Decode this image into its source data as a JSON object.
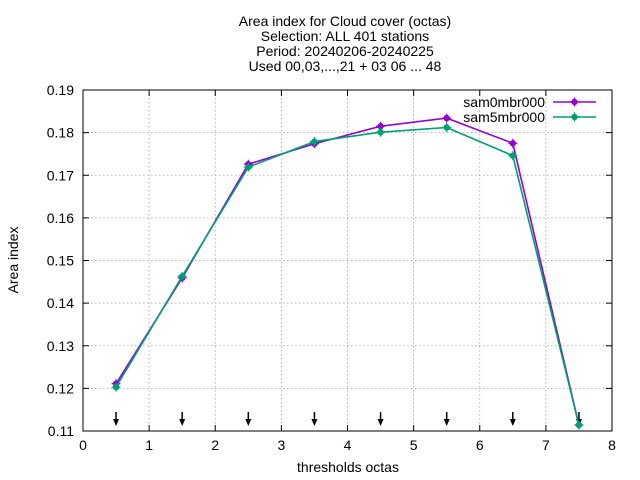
{
  "chart_data": {
    "type": "line",
    "title_lines": [
      "Area index  for Cloud cover (octas)",
      "Selection: ALL    401 stations",
      "Period: 20240206-20240225",
      "Used 00,03,...,21 + 03 06 ... 48"
    ],
    "xlabel": "thresholds octas",
    "ylabel": "Area index",
    "xlim": [
      0,
      8
    ],
    "ylim": [
      0.11,
      0.19
    ],
    "xticks": [
      0,
      1,
      2,
      3,
      4,
      5,
      6,
      7,
      8
    ],
    "yticks": [
      0.11,
      0.12,
      0.13,
      0.14,
      0.15,
      0.16,
      0.17,
      0.18,
      0.19
    ],
    "xtick_labels": [
      "0",
      "1",
      "2",
      "3",
      "4",
      "5",
      "6",
      "7",
      "8"
    ],
    "ytick_labels": [
      "0.11",
      "0.12",
      "0.13",
      "0.14",
      "0.15",
      "0.16",
      "0.17",
      "0.18",
      "0.19"
    ],
    "grid": true,
    "legend_position": "top-right",
    "x": [
      0.5,
      1.5,
      2.5,
      3.5,
      4.5,
      5.5,
      6.5,
      7.5
    ],
    "series": [
      {
        "name": "sam0mbr000",
        "color": "#9400d3",
        "values": [
          0.1211,
          0.1459,
          0.1726,
          0.1774,
          0.1815,
          0.1834,
          0.1775,
          0.1114
        ]
      },
      {
        "name": "sam5mbr000",
        "color": "#009e73",
        "values": [
          0.1203,
          0.1463,
          0.1719,
          0.1779,
          0.1801,
          0.1812,
          0.1746,
          0.1114
        ]
      }
    ],
    "arrow_markers_x": [
      0.5,
      1.5,
      2.5,
      3.5,
      4.5,
      5.5,
      6.5,
      7.5
    ]
  }
}
